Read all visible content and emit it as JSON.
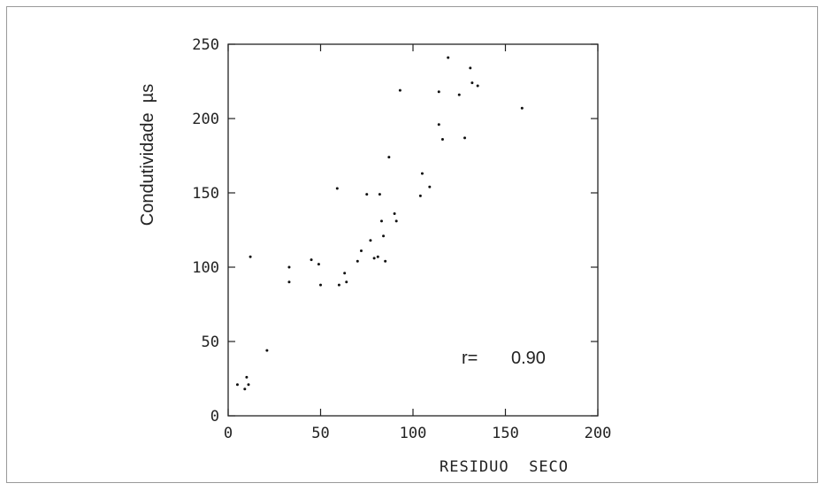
{
  "chart_data": {
    "type": "scatter",
    "title": "",
    "xlabel": "RESIDUO  SECO",
    "ylabel": "Condutividade  µs",
    "xlim": [
      0,
      200
    ],
    "ylim": [
      0,
      250
    ],
    "xticks": [
      "0",
      "50",
      "100",
      "150",
      "200"
    ],
    "yticks": [
      "0",
      "50",
      "100",
      "150",
      "200",
      "250"
    ],
    "grid": false,
    "annotation": {
      "label": "r=",
      "value": "0.90"
    },
    "points": [
      [
        5,
        21
      ],
      [
        9,
        18
      ],
      [
        10,
        26
      ],
      [
        11,
        21
      ],
      [
        12,
        107
      ],
      [
        21,
        44
      ],
      [
        33,
        100
      ],
      [
        33,
        90
      ],
      [
        45,
        105
      ],
      [
        49,
        102
      ],
      [
        50,
        88
      ],
      [
        59,
        153
      ],
      [
        60,
        88
      ],
      [
        63,
        96
      ],
      [
        64,
        90
      ],
      [
        70,
        104
      ],
      [
        72,
        111
      ],
      [
        75,
        149
      ],
      [
        77,
        118
      ],
      [
        79,
        106
      ],
      [
        81,
        107
      ],
      [
        82,
        149
      ],
      [
        83,
        131
      ],
      [
        84,
        121
      ],
      [
        85,
        104
      ],
      [
        87,
        174
      ],
      [
        90,
        136
      ],
      [
        91,
        131
      ],
      [
        93,
        219
      ],
      [
        104,
        148
      ],
      [
        105,
        163
      ],
      [
        109,
        154
      ],
      [
        114,
        218
      ],
      [
        114,
        196
      ],
      [
        116,
        186
      ],
      [
        119,
        241
      ],
      [
        125,
        216
      ],
      [
        128,
        187
      ],
      [
        131,
        234
      ],
      [
        132,
        224
      ],
      [
        135,
        222
      ],
      [
        159,
        207
      ]
    ]
  }
}
